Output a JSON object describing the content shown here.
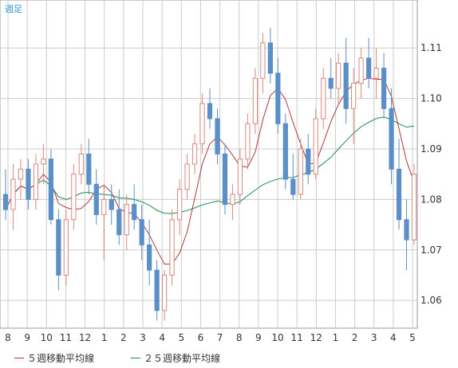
{
  "chart_data": {
    "type": "candlestick",
    "title": "週足",
    "x_tick_labels": [
      "8",
      "9",
      "10",
      "11",
      "12",
      "1",
      "2",
      "3",
      "4",
      "5",
      "6",
      "7",
      "8",
      "9",
      "10",
      "11",
      "12",
      "1",
      "2",
      "3",
      "4",
      "5"
    ],
    "y_tick_labels": [
      "1.06",
      "1.07",
      "1.08",
      "1.09",
      "1.10",
      "1.11"
    ],
    "ylim": [
      1.0545,
      1.1195
    ],
    "grid": true,
    "legend_position": "bottom",
    "series": [
      {
        "name": "５週移動平均線",
        "color": "#b03a3a"
      },
      {
        "name": "２５週移動平均線",
        "color": "#1a8a55"
      }
    ],
    "candles": [
      [
        1.081,
        1.086,
        1.076,
        1.078
      ],
      [
        1.078,
        1.087,
        1.074,
        1.084
      ],
      [
        1.084,
        1.088,
        1.08,
        1.086
      ],
      [
        1.086,
        1.088,
        1.078,
        1.08
      ],
      [
        1.08,
        1.089,
        1.078,
        1.087
      ],
      [
        1.087,
        1.091,
        1.083,
        1.088
      ],
      [
        1.088,
        1.09,
        1.075,
        1.076
      ],
      [
        1.076,
        1.078,
        1.062,
        1.065
      ],
      [
        1.065,
        1.078,
        1.063,
        1.076
      ],
      [
        1.076,
        1.087,
        1.074,
        1.085
      ],
      [
        1.085,
        1.091,
        1.083,
        1.089
      ],
      [
        1.089,
        1.092,
        1.081,
        1.083
      ],
      [
        1.083,
        1.086,
        1.075,
        1.077
      ],
      [
        1.077,
        1.083,
        1.068,
        1.08
      ],
      [
        1.08,
        1.083,
        1.075,
        1.078
      ],
      [
        1.078,
        1.082,
        1.071,
        1.073
      ],
      [
        1.073,
        1.081,
        1.07,
        1.079
      ],
      [
        1.079,
        1.083,
        1.074,
        1.076
      ],
      [
        1.076,
        1.079,
        1.068,
        1.071
      ],
      [
        1.071,
        1.076,
        1.063,
        1.066
      ],
      [
        1.066,
        1.068,
        1.056,
        1.058
      ],
      [
        1.058,
        1.066,
        1.056,
        1.065
      ],
      [
        1.065,
        1.078,
        1.063,
        1.076
      ],
      [
        1.076,
        1.084,
        1.073,
        1.082
      ],
      [
        1.082,
        1.089,
        1.08,
        1.087
      ],
      [
        1.087,
        1.093,
        1.085,
        1.091
      ],
      [
        1.091,
        1.101,
        1.089,
        1.099
      ],
      [
        1.099,
        1.102,
        1.094,
        1.096
      ],
      [
        1.096,
        1.098,
        1.087,
        1.089
      ],
      [
        1.089,
        1.091,
        1.077,
        1.079
      ],
      [
        1.079,
        1.083,
        1.076,
        1.081
      ],
      [
        1.081,
        1.09,
        1.079,
        1.088
      ],
      [
        1.088,
        1.097,
        1.086,
        1.095
      ],
      [
        1.095,
        1.106,
        1.093,
        1.104
      ],
      [
        1.104,
        1.113,
        1.101,
        1.111
      ],
      [
        1.111,
        1.114,
        1.103,
        1.105
      ],
      [
        1.105,
        1.108,
        1.093,
        1.095
      ],
      [
        1.095,
        1.097,
        1.082,
        1.084
      ],
      [
        1.084,
        1.089,
        1.08,
        1.081
      ],
      [
        1.081,
        1.092,
        1.08,
        1.09
      ],
      [
        1.09,
        1.093,
        1.083,
        1.085
      ],
      [
        1.085,
        1.098,
        1.084,
        1.096
      ],
      [
        1.096,
        1.106,
        1.094,
        1.104
      ],
      [
        1.104,
        1.108,
        1.1,
        1.102
      ],
      [
        1.102,
        1.109,
        1.099,
        1.107
      ],
      [
        1.107,
        1.112,
        1.095,
        1.098
      ],
      [
        1.098,
        1.106,
        1.091,
        1.103
      ],
      [
        1.103,
        1.11,
        1.1,
        1.108
      ],
      [
        1.108,
        1.112,
        1.102,
        1.104
      ],
      [
        1.104,
        1.11,
        1.1,
        1.106
      ],
      [
        1.106,
        1.109,
        1.096,
        1.098
      ],
      [
        1.098,
        1.102,
        1.083,
        1.086
      ],
      [
        1.086,
        1.092,
        1.074,
        1.076
      ],
      [
        1.076,
        1.08,
        1.066,
        1.072
      ],
      [
        1.072,
        1.087,
        1.071,
        1.085
      ]
    ]
  }
}
